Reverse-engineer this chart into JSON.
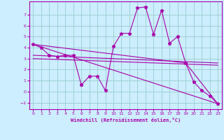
{
  "xlabel": "Windchill (Refroidissement éolien,°C)",
  "background_color": "#cceeff",
  "grid_color": "#99cccc",
  "line_color": "#aa00aa",
  "xlim": [
    -0.5,
    23.5
  ],
  "ylim": [
    -1.6,
    8.2
  ],
  "xticks": [
    0,
    1,
    2,
    3,
    4,
    5,
    6,
    7,
    8,
    9,
    10,
    11,
    12,
    13,
    14,
    15,
    16,
    17,
    18,
    19,
    20,
    21,
    22,
    23
  ],
  "yticks": [
    -1,
    0,
    1,
    2,
    3,
    4,
    5,
    6,
    7
  ],
  "series1_x": [
    0,
    1,
    2,
    3,
    4,
    5,
    6,
    7,
    8,
    9,
    10,
    11,
    12,
    13,
    14,
    15,
    16,
    17,
    18,
    19,
    20,
    21,
    22,
    23
  ],
  "series1_y": [
    4.3,
    4.0,
    3.3,
    3.2,
    3.3,
    3.3,
    0.6,
    1.4,
    1.4,
    0.1,
    4.1,
    5.3,
    5.3,
    7.6,
    7.7,
    5.2,
    7.4,
    4.4,
    5.0,
    2.6,
    0.9,
    0.1,
    -0.4,
    -1.1
  ],
  "series2_x": [
    0,
    23
  ],
  "series2_y": [
    4.3,
    -1.1
  ],
  "series3_x": [
    0,
    23
  ],
  "series3_y": [
    3.3,
    2.6
  ],
  "series4_x": [
    0,
    23
  ],
  "series4_y": [
    3.0,
    2.4
  ],
  "series5_x": [
    0,
    19,
    23
  ],
  "series5_y": [
    4.3,
    2.6,
    -1.1
  ]
}
